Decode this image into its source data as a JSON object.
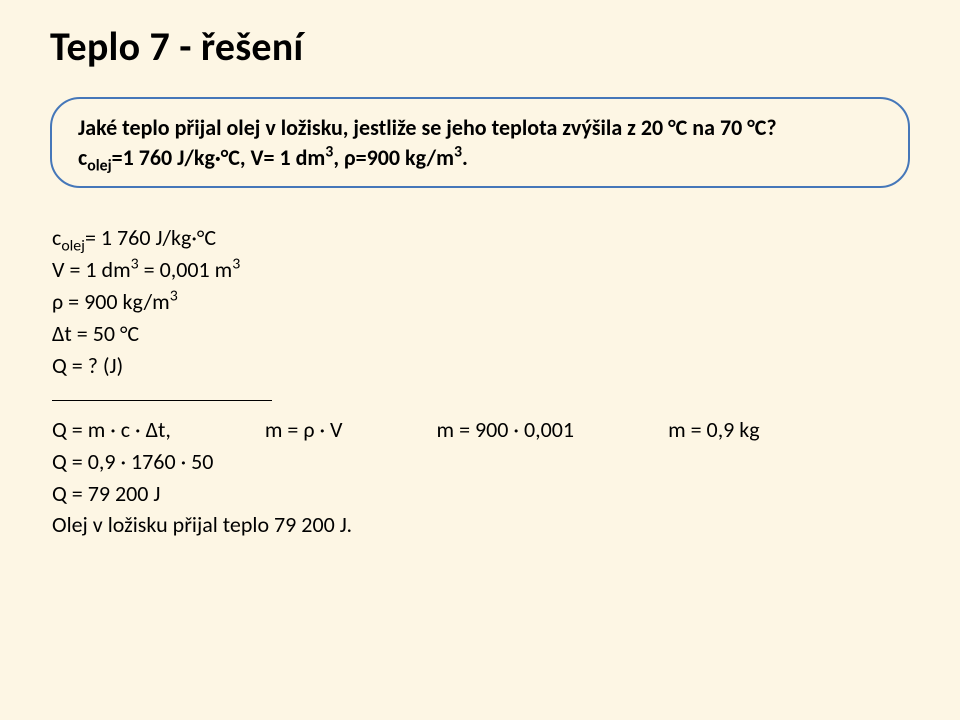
{
  "title": "Teplo 7 - řešení",
  "prompt": {
    "line1": "Jaké teplo přijal olej v ložisku, jestliže se jeho teplota zvýšila z 20 °C na 70 °C?",
    "line2_pre": "c",
    "line2_sub": "olej",
    "line2_post": "=1 760 J/kg·°C, V= 1 dm",
    "line2_sup1": "3",
    "line2_mid": ", ρ=900 kg/m",
    "line2_sup2": "3",
    "line2_end": "."
  },
  "given": {
    "c_pre": "c",
    "c_sub": "olej",
    "c_post": "= 1 760 J/kg·°C",
    "v_pre": "V = 1 dm",
    "v_sup1": "3",
    "v_mid": " = 0,001 m",
    "v_sup2": "3",
    "rho_pre": "ρ = 900 kg/m",
    "rho_sup": "3",
    "dt": "Δt = 50 °C",
    "q": "Q = ? (J)"
  },
  "calc": {
    "col1": "Q = m · c · Δt,",
    "col2": "m = ρ · V",
    "col3": "m = 900 · 0,001",
    "col4": "m = 0,9 kg",
    "step2": "Q = 0,9 · 1760 · 50",
    "step3": "Q = 79 200 J",
    "answer": "Olej v ložisku přijal teplo 79 200 J."
  }
}
